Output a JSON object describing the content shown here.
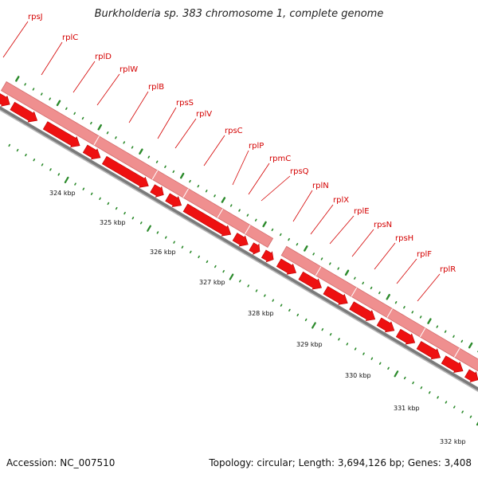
{
  "title": "Burkholderia sp. 383 chromosome 1, complete genome",
  "footer": {
    "accession": "Accession: NC_007510",
    "topology": "Topology: circular; Length: 3,694,126 bp; Genes: 3,408"
  },
  "colors": {
    "gene_arrow": "#ee1111",
    "gene_arrow_edge": "#bb0000",
    "operon_bar": "#ef8f8f",
    "backbone": "#7a7a7a",
    "tick": "#2b8a2b",
    "label_line": "#d40000",
    "highlight": "#9ae62e"
  },
  "gene_labels": [
    "rpsJ",
    "rplC",
    "rplD",
    "rplW",
    "rplB",
    "rpsS",
    "rplV",
    "rpsC",
    "rplP",
    "rpmC",
    "rpsQ",
    "rplN",
    "rplX",
    "rplE",
    "rpsN",
    "rpsH",
    "rplF",
    "rplR"
  ],
  "kbp_labels": [
    "324 kbp",
    "325 kbp",
    "326 kbp",
    "327 kbp",
    "328 kbp",
    "329 kbp",
    "330 kbp",
    "331 kbp",
    "332 kbp"
  ]
}
